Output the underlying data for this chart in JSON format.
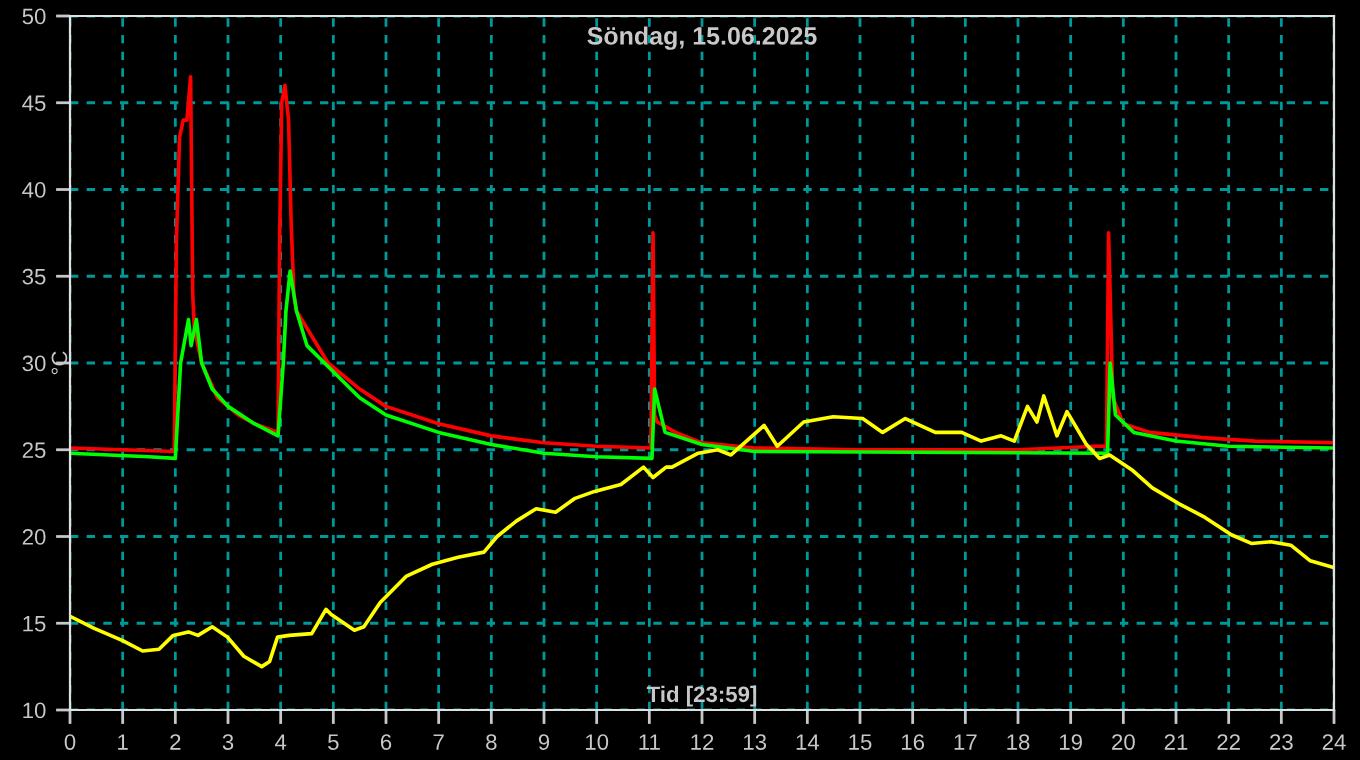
{
  "chart_data": {
    "type": "line",
    "title": "Söndag, 15.06.2025",
    "xlabel": "Tid [23:59]",
    "ylabel": "°C",
    "xlim": [
      0,
      24
    ],
    "xticks": [
      0,
      1,
      2,
      3,
      4,
      5,
      6,
      7,
      8,
      9,
      10,
      11,
      12,
      13,
      14,
      15,
      16,
      17,
      18,
      19,
      20,
      21,
      22,
      23,
      24
    ],
    "ylim": [
      10,
      50
    ],
    "yticks": [
      10,
      15,
      20,
      25,
      30,
      35,
      40,
      45,
      50
    ],
    "grid": true,
    "line_style": "solid",
    "marker": "none",
    "series": [
      {
        "color": "#ff0000",
        "x": [
          0,
          1,
          1.98,
          2.02,
          2.08,
          2.15,
          2.22,
          2.29,
          2.33,
          2.36,
          2.5,
          2.8,
          3.2,
          3.5,
          3.95,
          3.98,
          4.02,
          4.08,
          4.15,
          4.2,
          4.25,
          4.3,
          4.5,
          4.9,
          5.5,
          6,
          7,
          8,
          9,
          10,
          11.03,
          11.07,
          11.1,
          11.15,
          11.5,
          12,
          13,
          15,
          18,
          19.5,
          19.68,
          19.72,
          19.8,
          20,
          20.5,
          21.5,
          22.5,
          24
        ],
        "values": [
          25.1,
          25.0,
          24.9,
          37,
          43,
          44,
          44,
          46.5,
          34,
          32,
          30,
          28,
          27,
          26.5,
          26,
          37,
          45,
          46,
          44,
          38,
          34,
          33,
          32,
          30,
          28.5,
          27.5,
          26.5,
          25.8,
          25.4,
          25.2,
          25.1,
          37.5,
          27,
          26.6,
          26,
          25.4,
          25.1,
          25.0,
          25.0,
          25.2,
          25.2,
          37.5,
          28,
          26.5,
          26,
          25.7,
          25.5,
          25.4
        ]
      },
      {
        "color": "#00ff00",
        "x": [
          0,
          1.5,
          2.0,
          2.1,
          2.25,
          2.3,
          2.4,
          2.5,
          2.7,
          3,
          3.5,
          3.95,
          4.05,
          4.1,
          4.18,
          4.3,
          4.5,
          5,
          5.5,
          6,
          7,
          8,
          9,
          10,
          11.05,
          11.1,
          11.3,
          12,
          13,
          19.7,
          19.75,
          19.85,
          20.2,
          21,
          22,
          24
        ],
        "values": [
          24.8,
          24.6,
          24.5,
          30,
          32.5,
          31,
          32.5,
          30,
          28.5,
          27.5,
          26.5,
          25.8,
          30,
          33,
          35.3,
          33,
          31,
          29.5,
          28,
          27,
          26,
          25.3,
          24.8,
          24.6,
          24.5,
          28.5,
          26,
          25.3,
          24.9,
          24.8,
          30,
          27,
          26,
          25.5,
          25.2,
          25.1
        ]
      },
      {
        "color": "#ffff00",
        "x": [
          0,
          0.46,
          1,
          1.38,
          1.69,
          1.96,
          2.25,
          2.43,
          2.7,
          2.99,
          3.3,
          3.64,
          3.79,
          3.94,
          4.16,
          4.59,
          4.86,
          4.96,
          5.4,
          5.58,
          5.89,
          6.38,
          6.88,
          7.37,
          7.86,
          8.11,
          8.48,
          8.85,
          9.22,
          9.59,
          9.96,
          10.46,
          10.89,
          11.07,
          11.32,
          11.43,
          11.93,
          12.3,
          12.55,
          13.18,
          13.43,
          13.93,
          14.49,
          15.05,
          15.43,
          15.86,
          16.43,
          16.93,
          17.3,
          17.68,
          17.93,
          18.18,
          18.36,
          18.49,
          18.74,
          18.93,
          19.3,
          19.55,
          19.74,
          20.18,
          20.55,
          21.05,
          21.55,
          22.05,
          22.43,
          22.8,
          23.18,
          23.55,
          24
        ],
        "values": [
          15.4,
          14.7,
          14.0,
          13.4,
          13.5,
          14.3,
          14.5,
          14.3,
          14.8,
          14.2,
          13.1,
          12.5,
          12.8,
          14.2,
          14.3,
          14.4,
          15.8,
          15.5,
          14.6,
          14.8,
          16.2,
          17.7,
          18.4,
          18.8,
          19.1,
          20.0,
          20.9,
          21.6,
          21.4,
          22.2,
          22.6,
          23.0,
          24.0,
          23.4,
          24.0,
          24.0,
          24.8,
          25.0,
          24.7,
          26.4,
          25.2,
          26.6,
          26.9,
          26.8,
          26.0,
          26.8,
          26.0,
          26.0,
          25.5,
          25.8,
          25.5,
          27.5,
          26.6,
          28.1,
          25.8,
          27.2,
          25.3,
          24.5,
          24.7,
          23.8,
          22.8,
          21.9,
          21.1,
          20.1,
          19.6,
          19.7,
          19.5,
          18.6,
          18.2
        ]
      }
    ]
  }
}
